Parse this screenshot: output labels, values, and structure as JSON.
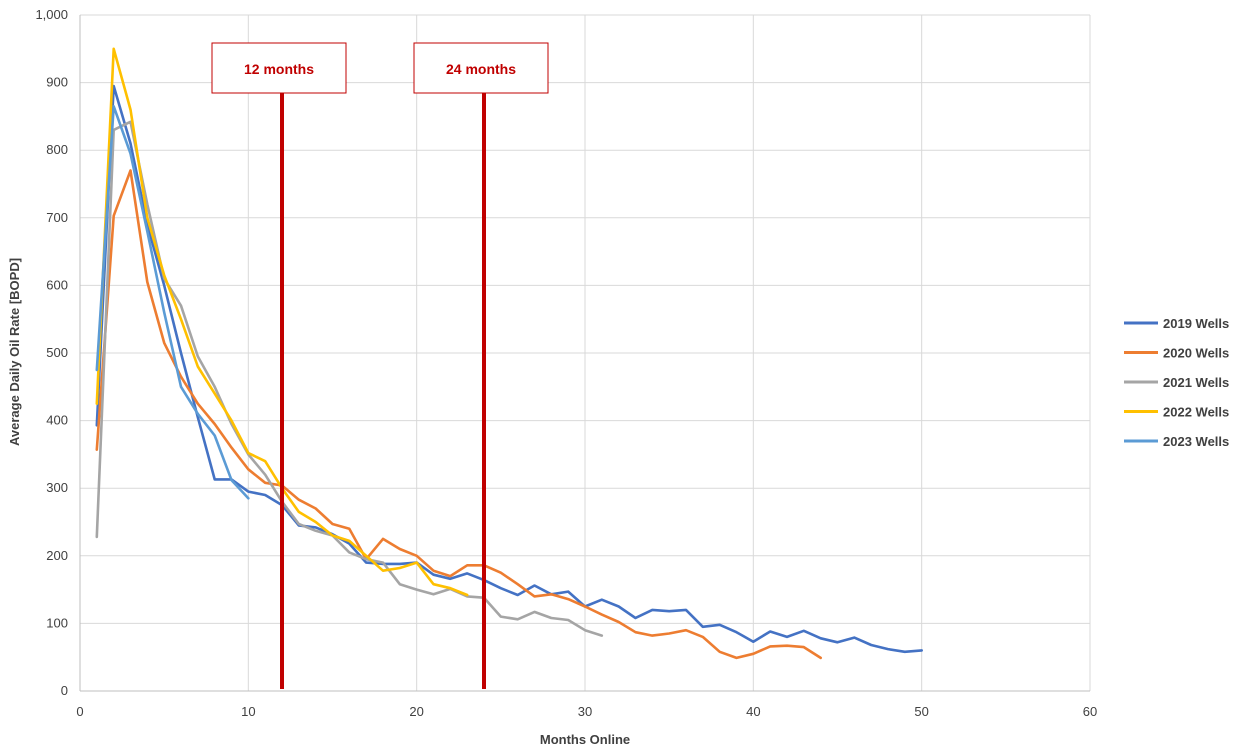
{
  "chart_data": {
    "type": "line",
    "xlabel": "Months Online",
    "ylabel": "Average Daily Oil Rate [BOPD]",
    "xlim": [
      0,
      60
    ],
    "ylim": [
      0,
      1000
    ],
    "xticks": [
      0,
      10,
      20,
      30,
      40,
      50,
      60
    ],
    "yticks": [
      0,
      100,
      200,
      300,
      400,
      500,
      600,
      700,
      800,
      900,
      1000
    ],
    "xtick_labels": [
      "0",
      "10",
      "20",
      "30",
      "40",
      "50",
      "60"
    ],
    "ytick_labels": [
      "0",
      "100",
      "200",
      "300",
      "400",
      "500",
      "600",
      "700",
      "800",
      "900",
      "1,000"
    ],
    "grid": true,
    "legend_position": "right",
    "series": [
      {
        "name": "2019 Wells",
        "color": "#4472c4",
        "x": [
          1,
          2,
          3,
          4,
          5,
          6,
          7,
          8,
          9,
          10,
          11,
          12,
          13,
          14,
          15,
          16,
          17,
          18,
          19,
          20,
          21,
          22,
          23,
          24,
          25,
          26,
          27,
          28,
          29,
          30,
          31,
          32,
          33,
          34,
          35,
          36,
          37,
          38,
          39,
          40,
          41,
          42,
          43,
          44,
          45,
          46,
          47,
          48,
          49,
          50
        ],
        "y": [
          393,
          895,
          810,
          690,
          600,
          500,
          405,
          313,
          313,
          295,
          290,
          275,
          245,
          242,
          232,
          218,
          190,
          188,
          188,
          190,
          172,
          166,
          174,
          164,
          152,
          142,
          156,
          143,
          147,
          125,
          135,
          125,
          108,
          120,
          118,
          120,
          95,
          98,
          87,
          73,
          88,
          80,
          89,
          78,
          72,
          79,
          68,
          62,
          58,
          60
        ]
      },
      {
        "name": "2020 Wells",
        "color": "#ed7d31",
        "x": [
          1,
          2,
          3,
          4,
          5,
          6,
          7,
          8,
          9,
          10,
          11,
          12,
          13,
          14,
          15,
          16,
          17,
          18,
          19,
          20,
          21,
          22,
          23,
          24,
          25,
          26,
          27,
          28,
          29,
          30,
          31,
          32,
          33,
          34,
          35,
          36,
          37,
          38,
          39,
          40,
          41,
          42,
          43,
          44
        ],
        "y": [
          357,
          703,
          770,
          605,
          515,
          465,
          425,
          395,
          360,
          328,
          308,
          304,
          283,
          270,
          247,
          240,
          195,
          225,
          210,
          200,
          178,
          170,
          186,
          186,
          175,
          158,
          140,
          143,
          136,
          125,
          113,
          102,
          87,
          82,
          85,
          90,
          80,
          58,
          49,
          55,
          66,
          67,
          65,
          49
        ]
      },
      {
        "name": "2021 Wells",
        "color": "#a5a5a5",
        "x": [
          1,
          2,
          3,
          4,
          5,
          6,
          7,
          8,
          9,
          10,
          11,
          12,
          13,
          14,
          15,
          16,
          17,
          18,
          19,
          20,
          21,
          22,
          23,
          24,
          25,
          26,
          27,
          28,
          29,
          30,
          31
        ],
        "y": [
          228,
          830,
          842,
          720,
          610,
          570,
          495,
          450,
          395,
          350,
          320,
          280,
          247,
          237,
          230,
          205,
          195,
          190,
          158,
          150,
          143,
          151,
          140,
          138,
          110,
          106,
          117,
          108,
          105,
          90,
          82
        ]
      },
      {
        "name": "2022 Wells",
        "color": "#ffc000",
        "x": [
          1,
          2,
          3,
          4,
          5,
          6,
          7,
          8,
          9,
          10,
          11,
          12,
          13,
          14,
          15,
          16,
          17,
          18,
          19,
          20,
          21,
          22,
          23
        ],
        "y": [
          425,
          950,
          860,
          700,
          615,
          550,
          480,
          440,
          400,
          352,
          340,
          300,
          265,
          250,
          230,
          222,
          200,
          178,
          182,
          190,
          158,
          152,
          142
        ]
      },
      {
        "name": "2023 Wells",
        "color": "#5b9bd5",
        "x": [
          1,
          2,
          3,
          4,
          5,
          6,
          7,
          8,
          9,
          10
        ],
        "y": [
          475,
          865,
          795,
          680,
          560,
          450,
          410,
          378,
          312,
          285
        ]
      }
    ],
    "annotations": [
      {
        "label": "12 months",
        "x": 12,
        "color": "#c00000"
      },
      {
        "label": "24 months",
        "x": 24,
        "color": "#c00000"
      }
    ]
  }
}
